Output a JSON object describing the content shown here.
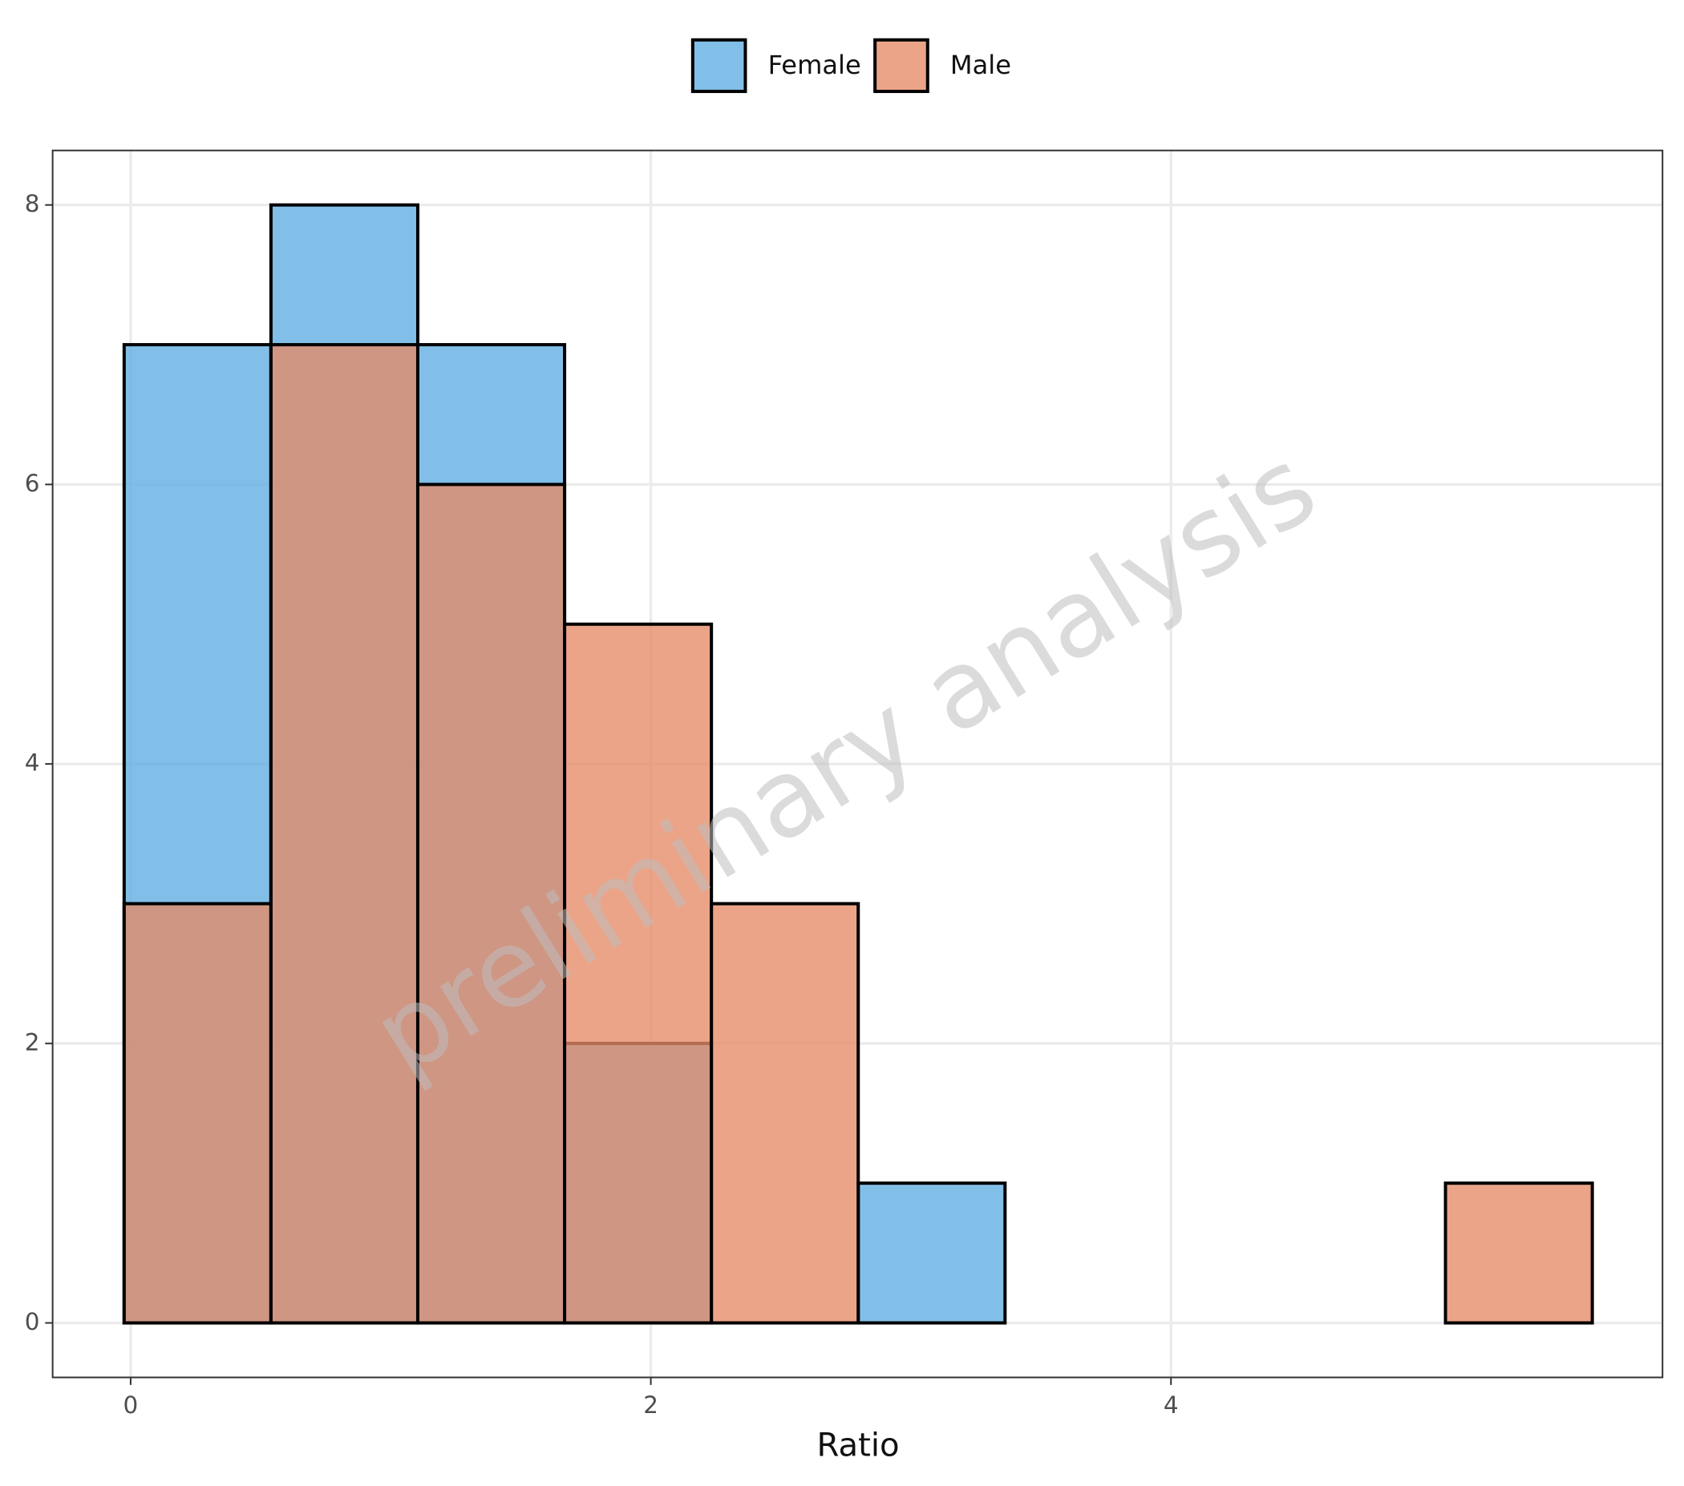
{
  "chart_data": {
    "type": "histogram",
    "x_label": "Ratio",
    "watermark": "preliminary analysis",
    "bins": [
      -0.025,
      0.5395,
      1.104,
      1.6685,
      2.233,
      2.7975,
      3.362,
      3.9265,
      4.491,
      5.0555,
      5.62
    ],
    "series": [
      {
        "name": "Female",
        "color": "#5DADE2",
        "values": [
          7,
          8,
          7,
          2,
          0,
          1,
          0,
          0,
          0,
          0
        ]
      },
      {
        "name": "Male",
        "color": "#E58B67",
        "values": [
          3,
          7,
          6,
          5,
          3,
          0,
          0,
          0,
          0,
          1
        ]
      }
    ],
    "xlim": [
      -0.3,
      5.89
    ],
    "ylim": [
      -0.39,
      8.39
    ],
    "xticks": [
      0,
      2,
      4
    ],
    "yticks": [
      0,
      2,
      4,
      6,
      8
    ],
    "grid": true,
    "legend": "top"
  }
}
